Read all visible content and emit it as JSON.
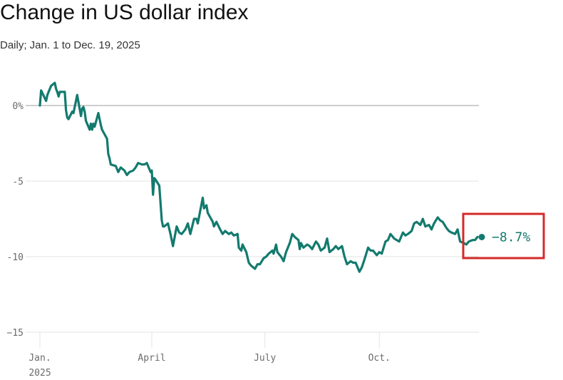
{
  "title": "Change in US dollar index",
  "subtitle": "Daily; Jan. 1 to Dec. 19, 2025",
  "colors": {
    "line": "#137a6e",
    "highlight_box": "#d42a2a",
    "grid": "#e3e3e3",
    "zero_line": "#bdbdbd"
  },
  "chart_data": {
    "type": "line",
    "title": "Change in US dollar index",
    "subtitle": "Daily; Jan. 1 to Dec. 19, 2025",
    "y_unit": "%",
    "ylim": [
      -15,
      2
    ],
    "y_ticks": [
      {
        "value": 0,
        "label": "0%"
      },
      {
        "value": -5,
        "label": "-5"
      },
      {
        "value": -10,
        "label": "-10"
      },
      {
        "value": -15,
        "label": "−15"
      }
    ],
    "x_ticks": [
      {
        "date": "2025-01-01",
        "label": "Jan.",
        "sublabel": "2025"
      },
      {
        "date": "2025-04-01",
        "label": "April",
        "sublabel": ""
      },
      {
        "date": "2025-07-01",
        "label": "July",
        "sublabel": ""
      },
      {
        "date": "2025-10-01",
        "label": "Oct.",
        "sublabel": ""
      }
    ],
    "grid": true,
    "end_label": "−8.7%",
    "series": [
      {
        "points": [
          [
            "2025-01-01",
            0.0
          ],
          [
            "2025-01-02",
            1.0
          ],
          [
            "2025-01-06",
            0.3
          ],
          [
            "2025-01-07",
            0.7
          ],
          [
            "2025-01-08",
            0.9
          ],
          [
            "2025-01-10",
            1.3
          ],
          [
            "2025-01-13",
            1.5
          ],
          [
            "2025-01-14",
            1.1
          ],
          [
            "2025-01-15",
            0.9
          ],
          [
            "2025-01-16",
            0.6
          ],
          [
            "2025-01-17",
            0.9
          ],
          [
            "2025-01-21",
            0.9
          ],
          [
            "2025-01-22",
            -0.3
          ],
          [
            "2025-01-23",
            -0.8
          ],
          [
            "2025-01-24",
            -0.9
          ],
          [
            "2025-01-27",
            -0.4
          ],
          [
            "2025-01-28",
            -0.5
          ],
          [
            "2025-01-30",
            0.3
          ],
          [
            "2025-01-31",
            0.7
          ],
          [
            "2025-02-03",
            -0.7
          ],
          [
            "2025-02-04",
            -0.2
          ],
          [
            "2025-02-05",
            -0.1
          ],
          [
            "2025-02-06",
            -0.4
          ],
          [
            "2025-02-07",
            -1.0
          ],
          [
            "2025-02-10",
            -1.6
          ],
          [
            "2025-02-11",
            -1.2
          ],
          [
            "2025-02-12",
            -1.6
          ],
          [
            "2025-02-13",
            -1.2
          ],
          [
            "2025-02-14",
            -1.4
          ],
          [
            "2025-02-17",
            -0.5
          ],
          [
            "2025-02-19",
            -1.3
          ],
          [
            "2025-02-20",
            -1.6
          ],
          [
            "2025-02-24",
            -2.2
          ],
          [
            "2025-02-25",
            -3.2
          ],
          [
            "2025-02-26",
            -3.5
          ],
          [
            "2025-02-27",
            -3.9
          ],
          [
            "2025-03-03",
            -4.0
          ],
          [
            "2025-03-05",
            -4.4
          ],
          [
            "2025-03-07",
            -4.1
          ],
          [
            "2025-03-10",
            -4.3
          ],
          [
            "2025-03-12",
            -4.6
          ],
          [
            "2025-03-14",
            -4.4
          ],
          [
            "2025-03-17",
            -4.3
          ],
          [
            "2025-03-19",
            -4.1
          ],
          [
            "2025-03-21",
            -3.8
          ],
          [
            "2025-03-24",
            -3.9
          ],
          [
            "2025-03-26",
            -3.9
          ],
          [
            "2025-03-28",
            -3.8
          ],
          [
            "2025-03-31",
            -4.4
          ],
          [
            "2025-04-01",
            -4.3
          ],
          [
            "2025-04-02",
            -5.9
          ],
          [
            "2025-04-03",
            -4.8
          ],
          [
            "2025-04-04",
            -4.9
          ],
          [
            "2025-04-07",
            -5.3
          ],
          [
            "2025-04-09",
            -7.6
          ],
          [
            "2025-04-10",
            -8.0
          ],
          [
            "2025-04-11",
            -8.0
          ],
          [
            "2025-04-14",
            -7.8
          ],
          [
            "2025-04-16",
            -8.5
          ],
          [
            "2025-04-18",
            -9.3
          ],
          [
            "2025-04-21",
            -8.0
          ],
          [
            "2025-04-23",
            -8.4
          ],
          [
            "2025-04-25",
            -8.5
          ],
          [
            "2025-04-28",
            -8.2
          ],
          [
            "2025-04-30",
            -7.8
          ],
          [
            "2025-05-02",
            -8.5
          ],
          [
            "2025-05-05",
            -7.5
          ],
          [
            "2025-05-07",
            -7.5
          ],
          [
            "2025-05-08",
            -7.8
          ],
          [
            "2025-05-12",
            -6.1
          ],
          [
            "2025-05-13",
            -6.8
          ],
          [
            "2025-05-15",
            -6.6
          ],
          [
            "2025-05-16",
            -7.1
          ],
          [
            "2025-05-20",
            -7.7
          ],
          [
            "2025-05-21",
            -8.0
          ],
          [
            "2025-05-23",
            -7.7
          ],
          [
            "2025-05-26",
            -8.2
          ],
          [
            "2025-05-28",
            -8.5
          ],
          [
            "2025-05-30",
            -8.3
          ],
          [
            "2025-06-02",
            -8.5
          ],
          [
            "2025-06-04",
            -8.4
          ],
          [
            "2025-06-06",
            -8.6
          ],
          [
            "2025-06-09",
            -8.5
          ],
          [
            "2025-06-10",
            -9.4
          ],
          [
            "2025-06-12",
            -9.6
          ],
          [
            "2025-06-13",
            -9.2
          ],
          [
            "2025-06-16",
            -9.7
          ],
          [
            "2025-06-18",
            -10.4
          ],
          [
            "2025-06-20",
            -10.6
          ],
          [
            "2025-06-23",
            -10.8
          ],
          [
            "2025-06-25",
            -10.5
          ],
          [
            "2025-06-27",
            -10.5
          ],
          [
            "2025-06-30",
            -10.1
          ],
          [
            "2025-07-02",
            -10.0
          ],
          [
            "2025-07-04",
            -9.8
          ],
          [
            "2025-07-07",
            -9.6
          ],
          [
            "2025-07-08",
            -9.8
          ],
          [
            "2025-07-10",
            -9.2
          ],
          [
            "2025-07-11",
            -9.7
          ],
          [
            "2025-07-14",
            -10.0
          ],
          [
            "2025-07-16",
            -10.3
          ],
          [
            "2025-07-18",
            -9.7
          ],
          [
            "2025-07-21",
            -9.1
          ],
          [
            "2025-07-23",
            -8.5
          ],
          [
            "2025-07-25",
            -8.7
          ],
          [
            "2025-07-28",
            -8.9
          ],
          [
            "2025-07-29",
            -9.5
          ],
          [
            "2025-07-30",
            -9.1
          ],
          [
            "2025-08-01",
            -9.4
          ],
          [
            "2025-08-04",
            -9.2
          ],
          [
            "2025-08-06",
            -9.3
          ],
          [
            "2025-08-08",
            -9.5
          ],
          [
            "2025-08-11",
            -9.0
          ],
          [
            "2025-08-13",
            -9.2
          ],
          [
            "2025-08-15",
            -9.6
          ],
          [
            "2025-08-18",
            -9.4
          ],
          [
            "2025-08-20",
            -8.8
          ],
          [
            "2025-08-22",
            -9.7
          ],
          [
            "2025-08-25",
            -9.5
          ],
          [
            "2025-08-27",
            -9.3
          ],
          [
            "2025-08-29",
            -9.5
          ],
          [
            "2025-09-01",
            -9.3
          ],
          [
            "2025-09-03",
            -10.0
          ],
          [
            "2025-09-05",
            -10.5
          ],
          [
            "2025-09-08",
            -10.3
          ],
          [
            "2025-09-10",
            -10.4
          ],
          [
            "2025-09-12",
            -10.4
          ],
          [
            "2025-09-15",
            -11.0
          ],
          [
            "2025-09-17",
            -10.7
          ],
          [
            "2025-09-19",
            -10.2
          ],
          [
            "2025-09-22",
            -9.4
          ],
          [
            "2025-09-24",
            -9.6
          ],
          [
            "2025-09-26",
            -9.6
          ],
          [
            "2025-09-29",
            -9.9
          ],
          [
            "2025-10-01",
            -9.7
          ],
          [
            "2025-10-03",
            -9.8
          ],
          [
            "2025-10-06",
            -9.0
          ],
          [
            "2025-10-08",
            -8.9
          ],
          [
            "2025-10-10",
            -8.5
          ],
          [
            "2025-10-13",
            -8.8
          ],
          [
            "2025-10-15",
            -8.9
          ],
          [
            "2025-10-17",
            -9.0
          ],
          [
            "2025-10-20",
            -8.4
          ],
          [
            "2025-10-22",
            -8.6
          ],
          [
            "2025-10-24",
            -8.5
          ],
          [
            "2025-10-27",
            -8.3
          ],
          [
            "2025-10-29",
            -7.8
          ],
          [
            "2025-10-31",
            -7.7
          ],
          [
            "2025-11-03",
            -7.9
          ],
          [
            "2025-11-05",
            -7.5
          ],
          [
            "2025-11-07",
            -8.0
          ],
          [
            "2025-11-10",
            -7.9
          ],
          [
            "2025-11-12",
            -8.2
          ],
          [
            "2025-11-14",
            -7.8
          ],
          [
            "2025-11-17",
            -7.4
          ],
          [
            "2025-11-19",
            -7.6
          ],
          [
            "2025-11-21",
            -7.7
          ],
          [
            "2025-11-24",
            -8.1
          ],
          [
            "2025-11-26",
            -8.3
          ],
          [
            "2025-11-28",
            -8.4
          ],
          [
            "2025-12-01",
            -8.5
          ],
          [
            "2025-12-03",
            -8.2
          ],
          [
            "2025-12-05",
            -9.0
          ],
          [
            "2025-12-08",
            -9.1
          ],
          [
            "2025-12-10",
            -9.2
          ],
          [
            "2025-12-12",
            -9.0
          ],
          [
            "2025-12-15",
            -8.9
          ],
          [
            "2025-12-17",
            -8.9
          ],
          [
            "2025-12-19",
            -8.7
          ]
        ]
      }
    ]
  }
}
